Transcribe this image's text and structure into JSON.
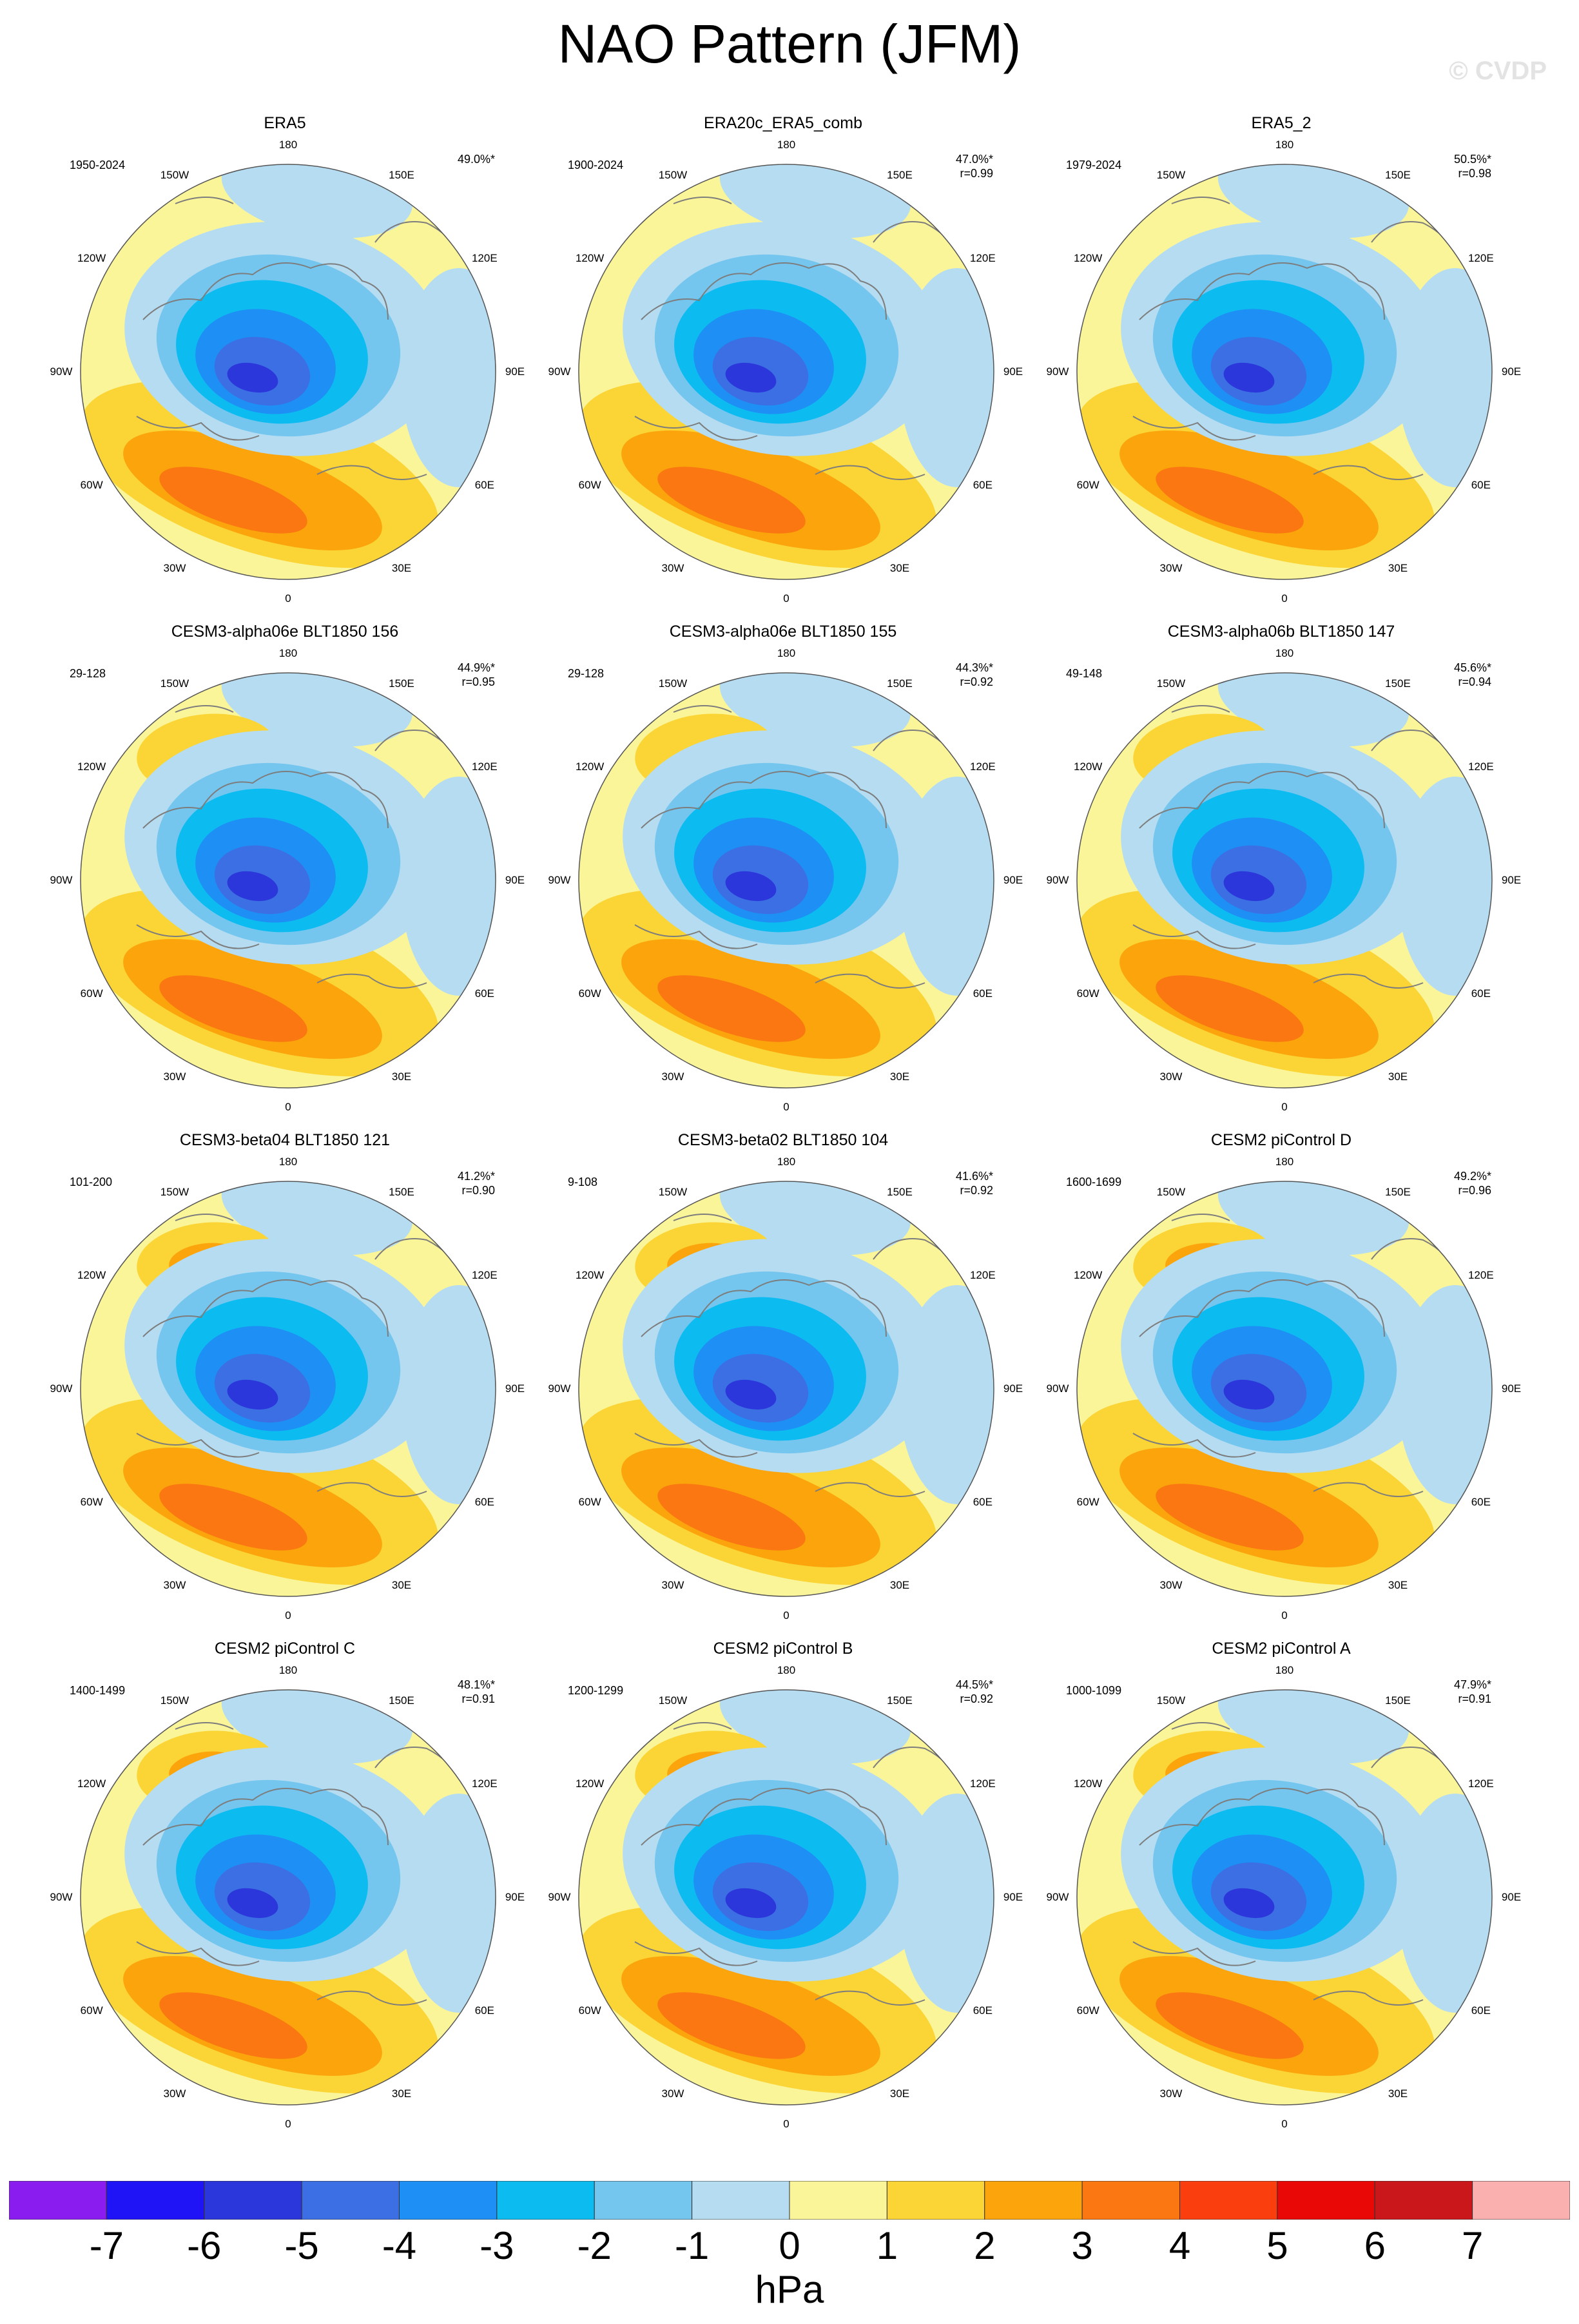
{
  "title": "NAO Pattern (JFM)",
  "watermark": "© CVDP",
  "lon_labels": [
    "180",
    "150E",
    "120E",
    "90E",
    "60E",
    "30E",
    "0",
    "30W",
    "60W",
    "90W",
    "120W",
    "150W"
  ],
  "panels": [
    {
      "name": "ERA5",
      "years": "1950-2024",
      "pct": "49.0%*",
      "r": ""
    },
    {
      "name": "ERA20c_ERA5_comb",
      "years": "1900-2024",
      "pct": "47.0%*",
      "r": "r=0.99"
    },
    {
      "name": "ERA5_2",
      "years": "1979-2024",
      "pct": "50.5%*",
      "r": "r=0.98"
    },
    {
      "name": "CESM3-alpha06e BLT1850 156",
      "years": "29-128",
      "pct": "44.9%*",
      "r": "r=0.95"
    },
    {
      "name": "CESM3-alpha06e BLT1850 155",
      "years": "29-128",
      "pct": "44.3%*",
      "r": "r=0.92"
    },
    {
      "name": "CESM3-alpha06b BLT1850 147",
      "years": "49-148",
      "pct": "45.6%*",
      "r": "r=0.94"
    },
    {
      "name": "CESM3-beta04 BLT1850 121",
      "years": "101-200",
      "pct": "41.2%*",
      "r": "r=0.90"
    },
    {
      "name": "CESM3-beta02 BLT1850 104",
      "years": "9-108",
      "pct": "41.6%*",
      "r": "r=0.92"
    },
    {
      "name": "CESM2 piControl D",
      "years": "1600-1699",
      "pct": "49.2%*",
      "r": "r=0.96"
    },
    {
      "name": "CESM2 piControl C",
      "years": "1400-1499",
      "pct": "48.1%*",
      "r": "r=0.91"
    },
    {
      "name": "CESM2 piControl B",
      "years": "1200-1299",
      "pct": "44.5%*",
      "r": "r=0.92"
    },
    {
      "name": "CESM2 piControl A",
      "years": "1000-1099",
      "pct": "47.9%*",
      "r": "r=0.91"
    }
  ],
  "colorbar": {
    "colors": [
      "#8b1cf0",
      "#1f14f5",
      "#2b37da",
      "#3c6fe3",
      "#1e8ff5",
      "#0cbcf0",
      "#74c6ef",
      "#b5dcf1",
      "#fbf59a",
      "#fbd435",
      "#fba40c",
      "#fa7711",
      "#fb3e0e",
      "#ea0807",
      "#c9171b",
      "#fbb0b0"
    ],
    "ticks": [
      "-7",
      "-6",
      "-5",
      "-4",
      "-3",
      "-2",
      "-1",
      "0",
      "1",
      "2",
      "3",
      "4",
      "5",
      "6",
      "7"
    ],
    "units": "hPa"
  }
}
